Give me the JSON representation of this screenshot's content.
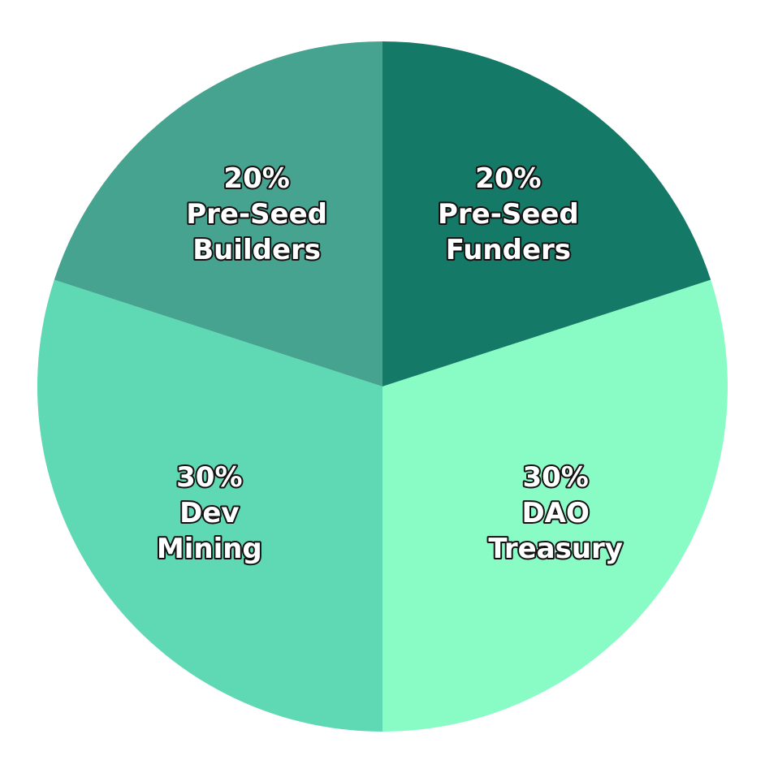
{
  "chart_data": {
    "type": "pie",
    "title": "",
    "slices": [
      {
        "percent_label": "20%",
        "label_lines": [
          "Pre-Seed",
          "Funders"
        ],
        "value": 20,
        "color": "#147966"
      },
      {
        "percent_label": "30%",
        "label_lines": [
          "DAO",
          "Treasury"
        ],
        "value": 30,
        "color": "#89FBC5"
      },
      {
        "percent_label": "30%",
        "label_lines": [
          "Dev",
          "Mining"
        ],
        "value": 30,
        "color": "#5ED9B4"
      },
      {
        "percent_label": "20%",
        "label_lines": [
          "Pre-Seed",
          "Builders"
        ],
        "value": 20,
        "color": "#45A390"
      }
    ],
    "start": "12 o'clock",
    "direction": "clockwise",
    "legend": "none"
  }
}
